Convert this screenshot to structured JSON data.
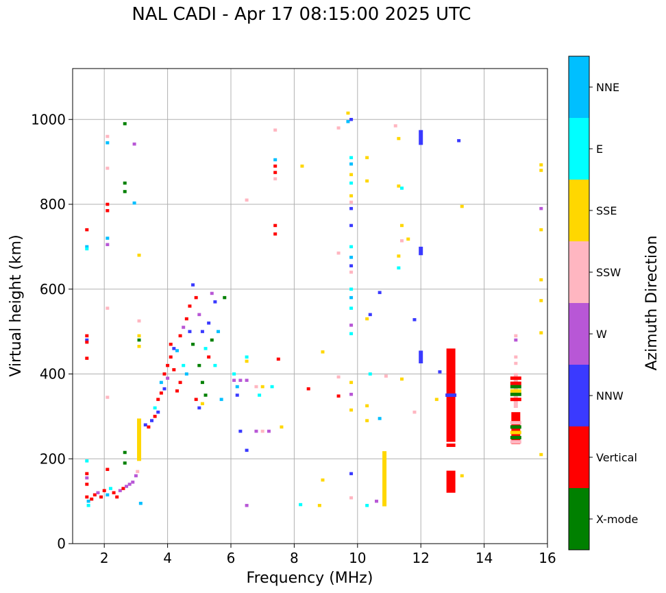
{
  "chart_data": {
    "type": "scatter",
    "title": "NAL CADI - Apr 17 08:15:00 2025 UTC",
    "xlabel": "Frequency (MHz)",
    "ylabel": "Virtual height (km)",
    "xlim": [
      1,
      16
    ],
    "ylim": [
      0,
      1120
    ],
    "xticks": [
      2,
      4,
      6,
      8,
      10,
      12,
      14,
      16
    ],
    "yticks": [
      0,
      200,
      400,
      600,
      800,
      1000
    ],
    "grid": true,
    "colorbar": {
      "label": "Azimuth Direction",
      "categories": [
        {
          "name": "X-mode",
          "color": "#008000"
        },
        {
          "name": "Vertical",
          "color": "#ff0000"
        },
        {
          "name": "NNW",
          "color": "#3a3aff"
        },
        {
          "name": "W",
          "color": "#b857d6"
        },
        {
          "name": "SSW",
          "color": "#ffb6c1"
        },
        {
          "name": "SSE",
          "color": "#ffd700"
        },
        {
          "name": "E",
          "color": "#00ffff"
        },
        {
          "name": "NNE",
          "color": "#00bfff"
        }
      ]
    },
    "points": [
      {
        "f": 1.45,
        "h": 740,
        "c": "Vertical"
      },
      {
        "f": 1.45,
        "h": 700,
        "c": "NNE"
      },
      {
        "f": 1.45,
        "h": 695,
        "c": "E"
      },
      {
        "f": 1.45,
        "h": 490,
        "c": "Vertical"
      },
      {
        "f": 1.45,
        "h": 480,
        "c": "NNW"
      },
      {
        "f": 1.45,
        "h": 475,
        "c": "Vertical"
      },
      {
        "f": 1.45,
        "h": 437,
        "c": "Vertical"
      },
      {
        "f": 1.45,
        "h": 195,
        "c": "E"
      },
      {
        "f": 1.45,
        "h": 165,
        "c": "Vertical"
      },
      {
        "f": 1.45,
        "h": 155,
        "c": "W"
      },
      {
        "f": 1.45,
        "h": 140,
        "c": "Vertical"
      },
      {
        "f": 1.45,
        "h": 110,
        "c": "Vertical"
      },
      {
        "f": 1.5,
        "h": 100,
        "c": "NNE"
      },
      {
        "f": 1.5,
        "h": 90,
        "c": "E"
      },
      {
        "f": 1.6,
        "h": 105,
        "c": "Vertical"
      },
      {
        "f": 1.7,
        "h": 115,
        "c": "Vertical"
      },
      {
        "f": 1.8,
        "h": 120,
        "c": "W"
      },
      {
        "f": 1.9,
        "h": 110,
        "c": "Vertical"
      },
      {
        "f": 2.0,
        "h": 125,
        "c": "Vertical"
      },
      {
        "f": 2.1,
        "h": 115,
        "c": "NNE"
      },
      {
        "f": 2.2,
        "h": 130,
        "c": "E"
      },
      {
        "f": 2.3,
        "h": 120,
        "c": "Vertical"
      },
      {
        "f": 2.4,
        "h": 110,
        "c": "Vertical"
      },
      {
        "f": 2.5,
        "h": 125,
        "c": "W"
      },
      {
        "f": 2.6,
        "h": 130,
        "c": "Vertical"
      },
      {
        "f": 2.7,
        "h": 135,
        "c": "W"
      },
      {
        "f": 2.8,
        "h": 140,
        "c": "W"
      },
      {
        "f": 2.9,
        "h": 145,
        "c": "W"
      },
      {
        "f": 3.0,
        "h": 160,
        "c": "W"
      },
      {
        "f": 3.05,
        "h": 170,
        "c": "SSW"
      },
      {
        "f": 2.1,
        "h": 960,
        "c": "SSW"
      },
      {
        "f": 2.1,
        "h": 945,
        "c": "NNE"
      },
      {
        "f": 2.1,
        "h": 800,
        "c": "Vertical"
      },
      {
        "f": 2.1,
        "h": 785,
        "c": "Vertical"
      },
      {
        "f": 2.1,
        "h": 720,
        "c": "NNE"
      },
      {
        "f": 2.1,
        "h": 705,
        "c": "W"
      },
      {
        "f": 2.1,
        "h": 885,
        "c": "SSW"
      },
      {
        "f": 2.1,
        "h": 555,
        "c": "SSW"
      },
      {
        "f": 2.1,
        "h": 345,
        "c": "SSW"
      },
      {
        "f": 2.1,
        "h": 175,
        "c": "Vertical"
      },
      {
        "f": 2.65,
        "h": 990,
        "c": "X-mode"
      },
      {
        "f": 2.65,
        "h": 850,
        "c": "X-mode"
      },
      {
        "f": 2.65,
        "h": 830,
        "c": "X-mode"
      },
      {
        "f": 2.65,
        "h": 215,
        "c": "X-mode"
      },
      {
        "f": 2.65,
        "h": 190,
        "c": "X-mode"
      },
      {
        "f": 2.95,
        "h": 942,
        "c": "W"
      },
      {
        "f": 2.95,
        "h": 803,
        "c": "NNE"
      },
      {
        "f": 3.1,
        "h": 680,
        "c": "SSE"
      },
      {
        "f": 3.1,
        "h": 525,
        "c": "SSW"
      },
      {
        "f": 3.1,
        "h": 490,
        "c": "SSE"
      },
      {
        "f": 3.1,
        "h": 480,
        "c": "X-mode"
      },
      {
        "f": 3.1,
        "h": 465,
        "c": "SSE"
      },
      {
        "f": 3.15,
        "h": 95,
        "c": "NNE"
      },
      {
        "f": 3.3,
        "h": 280,
        "c": "NNW"
      },
      {
        "f": 3.4,
        "h": 275,
        "c": "Vertical"
      },
      {
        "f": 3.5,
        "h": 290,
        "c": "NNW"
      },
      {
        "f": 3.6,
        "h": 300,
        "c": "Vertical"
      },
      {
        "f": 3.6,
        "h": 320,
        "c": "E"
      },
      {
        "f": 3.7,
        "h": 340,
        "c": "Vertical"
      },
      {
        "f": 3.7,
        "h": 310,
        "c": "NNW"
      },
      {
        "f": 3.8,
        "h": 355,
        "c": "Vertical"
      },
      {
        "f": 3.8,
        "h": 380,
        "c": "NNE"
      },
      {
        "f": 3.9,
        "h": 400,
        "c": "Vertical"
      },
      {
        "f": 3.9,
        "h": 365,
        "c": "NNW"
      },
      {
        "f": 4.0,
        "h": 420,
        "c": "Vertical"
      },
      {
        "f": 4.0,
        "h": 390,
        "c": "W"
      },
      {
        "f": 4.1,
        "h": 440,
        "c": "Vertical"
      },
      {
        "f": 4.1,
        "h": 470,
        "c": "Vertical"
      },
      {
        "f": 4.2,
        "h": 460,
        "c": "NNW"
      },
      {
        "f": 4.2,
        "h": 410,
        "c": "Vertical"
      },
      {
        "f": 4.3,
        "h": 455,
        "c": "NNE"
      },
      {
        "f": 4.3,
        "h": 360,
        "c": "Vertical"
      },
      {
        "f": 4.4,
        "h": 490,
        "c": "Vertical"
      },
      {
        "f": 4.4,
        "h": 380,
        "c": "Vertical"
      },
      {
        "f": 4.5,
        "h": 510,
        "c": "W"
      },
      {
        "f": 4.5,
        "h": 420,
        "c": "E"
      },
      {
        "f": 4.6,
        "h": 530,
        "c": "Vertical"
      },
      {
        "f": 4.6,
        "h": 400,
        "c": "NNE"
      },
      {
        "f": 4.7,
        "h": 560,
        "c": "Vertical"
      },
      {
        "f": 4.7,
        "h": 500,
        "c": "NNW"
      },
      {
        "f": 4.8,
        "h": 610,
        "c": "NNW"
      },
      {
        "f": 4.8,
        "h": 470,
        "c": "X-mode"
      },
      {
        "f": 4.9,
        "h": 580,
        "c": "Vertical"
      },
      {
        "f": 5.0,
        "h": 540,
        "c": "W"
      },
      {
        "f": 5.0,
        "h": 420,
        "c": "X-mode"
      },
      {
        "f": 5.1,
        "h": 500,
        "c": "NNW"
      },
      {
        "f": 5.1,
        "h": 380,
        "c": "X-mode"
      },
      {
        "f": 5.2,
        "h": 460,
        "c": "E"
      },
      {
        "f": 5.2,
        "h": 350,
        "c": "X-mode"
      },
      {
        "f": 5.3,
        "h": 520,
        "c": "NNW"
      },
      {
        "f": 5.3,
        "h": 440,
        "c": "Vertical"
      },
      {
        "f": 5.4,
        "h": 480,
        "c": "X-mode"
      },
      {
        "f": 5.4,
        "h": 590,
        "c": "W"
      },
      {
        "f": 5.5,
        "h": 570,
        "c": "NNW"
      },
      {
        "f": 5.5,
        "h": 420,
        "c": "E"
      },
      {
        "f": 5.6,
        "h": 500,
        "c": "NNE"
      },
      {
        "f": 5.7,
        "h": 340,
        "c": "NNE"
      },
      {
        "f": 5.8,
        "h": 580,
        "c": "X-mode"
      },
      {
        "f": 5.0,
        "h": 320,
        "c": "NNW"
      },
      {
        "f": 5.1,
        "h": 330,
        "c": "SSE"
      },
      {
        "f": 4.9,
        "h": 340,
        "c": "Vertical"
      },
      {
        "f": 6.1,
        "h": 400,
        "c": "E"
      },
      {
        "f": 6.1,
        "h": 385,
        "c": "W"
      },
      {
        "f": 6.2,
        "h": 370,
        "c": "NNE"
      },
      {
        "f": 6.2,
        "h": 350,
        "c": "NNW"
      },
      {
        "f": 6.3,
        "h": 385,
        "c": "W"
      },
      {
        "f": 6.5,
        "h": 440,
        "c": "E"
      },
      {
        "f": 6.5,
        "h": 430,
        "c": "SSE"
      },
      {
        "f": 6.5,
        "h": 385,
        "c": "W"
      },
      {
        "f": 6.5,
        "h": 220,
        "c": "NNW"
      },
      {
        "f": 6.5,
        "h": 90,
        "c": "W"
      },
      {
        "f": 6.5,
        "h": 810,
        "c": "SSW"
      },
      {
        "f": 6.3,
        "h": 265,
        "c": "NNW"
      },
      {
        "f": 6.8,
        "h": 370,
        "c": "SSW"
      },
      {
        "f": 6.8,
        "h": 265,
        "c": "W"
      },
      {
        "f": 6.9,
        "h": 350,
        "c": "E"
      },
      {
        "f": 7.0,
        "h": 370,
        "c": "SSE"
      },
      {
        "f": 7.0,
        "h": 265,
        "c": "SSW"
      },
      {
        "f": 7.2,
        "h": 265,
        "c": "W"
      },
      {
        "f": 7.3,
        "h": 370,
        "c": "E"
      },
      {
        "f": 7.5,
        "h": 435,
        "c": "Vertical"
      },
      {
        "f": 7.6,
        "h": 275,
        "c": "SSE"
      },
      {
        "f": 7.4,
        "h": 975,
        "c": "SSW"
      },
      {
        "f": 7.4,
        "h": 905,
        "c": "NNE"
      },
      {
        "f": 7.4,
        "h": 890,
        "c": "Vertical"
      },
      {
        "f": 7.4,
        "h": 875,
        "c": "Vertical"
      },
      {
        "f": 7.4,
        "h": 860,
        "c": "SSW"
      },
      {
        "f": 7.4,
        "h": 750,
        "c": "Vertical"
      },
      {
        "f": 7.4,
        "h": 730,
        "c": "Vertical"
      },
      {
        "f": 8.25,
        "h": 890,
        "c": "SSE"
      },
      {
        "f": 8.45,
        "h": 365,
        "c": "Vertical"
      },
      {
        "f": 8.2,
        "h": 92,
        "c": "E"
      },
      {
        "f": 8.8,
        "h": 90,
        "c": "SSE"
      },
      {
        "f": 8.9,
        "h": 150,
        "c": "SSE"
      },
      {
        "f": 8.9,
        "h": 452,
        "c": "SSE"
      },
      {
        "f": 9.4,
        "h": 980,
        "c": "SSW"
      },
      {
        "f": 9.4,
        "h": 685,
        "c": "SSW"
      },
      {
        "f": 9.4,
        "h": 393,
        "c": "SSW"
      },
      {
        "f": 9.4,
        "h": 348,
        "c": "Vertical"
      },
      {
        "f": 9.7,
        "h": 1015,
        "c": "SSE"
      },
      {
        "f": 9.7,
        "h": 995,
        "c": "NNE"
      },
      {
        "f": 9.8,
        "h": 1000,
        "c": "NNW"
      },
      {
        "f": 9.8,
        "h": 910,
        "c": "E"
      },
      {
        "f": 9.8,
        "h": 895,
        "c": "NNE"
      },
      {
        "f": 9.8,
        "h": 870,
        "c": "SSE"
      },
      {
        "f": 9.8,
        "h": 850,
        "c": "E"
      },
      {
        "f": 9.8,
        "h": 820,
        "c": "SSE"
      },
      {
        "f": 9.8,
        "h": 805,
        "c": "SSW"
      },
      {
        "f": 9.8,
        "h": 790,
        "c": "NNW"
      },
      {
        "f": 9.8,
        "h": 750,
        "c": "NNW"
      },
      {
        "f": 9.8,
        "h": 700,
        "c": "E"
      },
      {
        "f": 9.8,
        "h": 675,
        "c": "NNE"
      },
      {
        "f": 9.8,
        "h": 655,
        "c": "NNW"
      },
      {
        "f": 9.8,
        "h": 640,
        "c": "SSW"
      },
      {
        "f": 9.8,
        "h": 600,
        "c": "E"
      },
      {
        "f": 9.8,
        "h": 580,
        "c": "NNE"
      },
      {
        "f": 9.8,
        "h": 555,
        "c": "E"
      },
      {
        "f": 9.8,
        "h": 515,
        "c": "W"
      },
      {
        "f": 9.8,
        "h": 495,
        "c": "E"
      },
      {
        "f": 9.8,
        "h": 380,
        "c": "SSE"
      },
      {
        "f": 9.8,
        "h": 352,
        "c": "W"
      },
      {
        "f": 9.8,
        "h": 315,
        "c": "SSE"
      },
      {
        "f": 9.8,
        "h": 165,
        "c": "NNW"
      },
      {
        "f": 9.8,
        "h": 108,
        "c": "SSW"
      },
      {
        "f": 10.3,
        "h": 910,
        "c": "SSE"
      },
      {
        "f": 10.3,
        "h": 855,
        "c": "SSE"
      },
      {
        "f": 10.3,
        "h": 530,
        "c": "SSE"
      },
      {
        "f": 10.4,
        "h": 540,
        "c": "NNW"
      },
      {
        "f": 10.4,
        "h": 400,
        "c": "E"
      },
      {
        "f": 10.3,
        "h": 325,
        "c": "SSE"
      },
      {
        "f": 10.3,
        "h": 290,
        "c": "SSE"
      },
      {
        "f": 10.3,
        "h": 90,
        "c": "E"
      },
      {
        "f": 10.7,
        "h": 592,
        "c": "NNW"
      },
      {
        "f": 10.7,
        "h": 295,
        "c": "NNE"
      },
      {
        "f": 10.6,
        "h": 100,
        "c": "W"
      },
      {
        "f": 10.9,
        "h": 395,
        "c": "SSW"
      },
      {
        "f": 11.2,
        "h": 985,
        "c": "SSW"
      },
      {
        "f": 11.3,
        "h": 955,
        "c": "SSE"
      },
      {
        "f": 11.3,
        "h": 843,
        "c": "SSE"
      },
      {
        "f": 11.4,
        "h": 838,
        "c": "E"
      },
      {
        "f": 11.4,
        "h": 750,
        "c": "SSE"
      },
      {
        "f": 11.4,
        "h": 714,
        "c": "SSW"
      },
      {
        "f": 11.6,
        "h": 718,
        "c": "SSE"
      },
      {
        "f": 11.3,
        "h": 678,
        "c": "SSE"
      },
      {
        "f": 11.3,
        "h": 650,
        "c": "E"
      },
      {
        "f": 11.4,
        "h": 388,
        "c": "SSE"
      },
      {
        "f": 11.8,
        "h": 528,
        "c": "NNW"
      },
      {
        "f": 11.8,
        "h": 310,
        "c": "SSW"
      },
      {
        "f": 12.6,
        "h": 405,
        "c": "NNW"
      },
      {
        "f": 12.5,
        "h": 340,
        "c": "SSE"
      },
      {
        "f": 13.2,
        "h": 950,
        "c": "NNW"
      },
      {
        "f": 13.3,
        "h": 795,
        "c": "SSE"
      },
      {
        "f": 13.3,
        "h": 160,
        "c": "SSE"
      },
      {
        "f": 15.8,
        "h": 893,
        "c": "SSE"
      },
      {
        "f": 15.8,
        "h": 880,
        "c": "SSE"
      },
      {
        "f": 15.8,
        "h": 790,
        "c": "W"
      },
      {
        "f": 15.8,
        "h": 740,
        "c": "SSE"
      },
      {
        "f": 15.8,
        "h": 622,
        "c": "SSE"
      },
      {
        "f": 15.8,
        "h": 573,
        "c": "SSE"
      },
      {
        "f": 15.8,
        "h": 497,
        "c": "SSE"
      },
      {
        "f": 15.8,
        "h": 210,
        "c": "SSE"
      },
      {
        "f": 15.0,
        "h": 490,
        "c": "SSW"
      },
      {
        "f": 15.0,
        "h": 480,
        "c": "W"
      },
      {
        "f": 15.0,
        "h": 440,
        "c": "SSW"
      },
      {
        "f": 15.0,
        "h": 425,
        "c": "SSW"
      }
    ],
    "segments": [
      {
        "f": 3.1,
        "h0": 195,
        "h1": 295,
        "c": "SSE"
      },
      {
        "f": 10.85,
        "h0": 88,
        "h1": 218,
        "c": "SSE"
      },
      {
        "f": 12.0,
        "h0": 940,
        "h1": 975,
        "c": "NNW"
      },
      {
        "f": 12.0,
        "h0": 680,
        "h1": 700,
        "c": "NNW"
      },
      {
        "f": 12.0,
        "h0": 425,
        "h1": 455,
        "c": "NNW"
      },
      {
        "f": 12.95,
        "h0": 240,
        "h1": 460,
        "c": "Vertical"
      },
      {
        "f": 12.95,
        "h0": 120,
        "h1": 172,
        "c": "Vertical"
      },
      {
        "f": 12.95,
        "h0": 228,
        "h1": 236,
        "c": "Vertical"
      },
      {
        "f": 15.0,
        "h0": 235,
        "h1": 310,
        "c": "Vertical"
      },
      {
        "f": 15.0,
        "h0": 320,
        "h1": 402,
        "c": "SSW"
      }
    ],
    "overlays": [
      {
        "f": 12.95,
        "h": 350,
        "c": "NNW"
      },
      {
        "f": 15.0,
        "h": 370,
        "c": "X-mode"
      },
      {
        "f": 15.0,
        "h": 352,
        "c": "X-mode"
      },
      {
        "f": 15.0,
        "h": 360,
        "c": "SSE"
      },
      {
        "f": 15.0,
        "h": 390,
        "c": "Vertical"
      },
      {
        "f": 15.0,
        "h": 378,
        "c": "Vertical"
      },
      {
        "f": 15.0,
        "h": 340,
        "c": "Vertical"
      },
      {
        "f": 15.0,
        "h": 275,
        "c": "X-mode"
      },
      {
        "f": 15.0,
        "h": 262,
        "c": "SSE"
      },
      {
        "f": 15.0,
        "h": 250,
        "c": "X-mode"
      },
      {
        "f": 15.0,
        "h": 285,
        "c": "SSW"
      },
      {
        "f": 15.0,
        "h": 240,
        "c": "SSW"
      }
    ]
  }
}
